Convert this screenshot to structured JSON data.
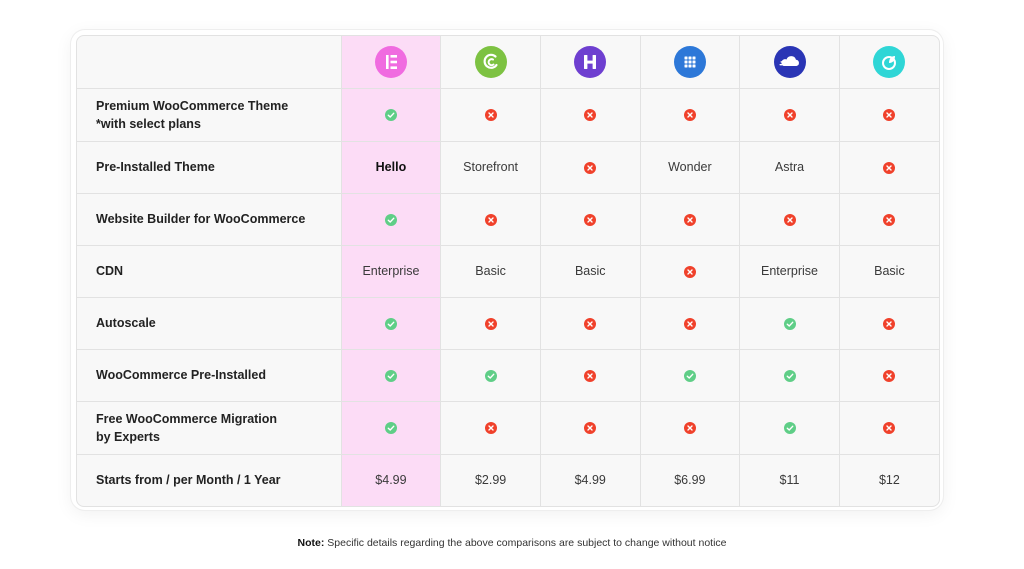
{
  "colors": {
    "highlight": "#fcdcf6",
    "check": "#5fce87",
    "cross": "#f0412b"
  },
  "providers": [
    {
      "icon": "elementor-icon",
      "color": "#f06be0"
    },
    {
      "icon": "green-swirl-icon",
      "color": "#7dc242"
    },
    {
      "icon": "letter-h-icon",
      "color": "#6e3fd0"
    },
    {
      "icon": "grid-icon",
      "color": "#2d78d8"
    },
    {
      "icon": "cloud-icon",
      "color": "#2a35b5"
    },
    {
      "icon": "leaf-circle-icon",
      "color": "#2fd6d6"
    }
  ],
  "rows": [
    {
      "label_line1": "Premium WooCommerce Theme",
      "label_line2": "*with select plans",
      "cells": [
        {
          "type": "check"
        },
        {
          "type": "cross"
        },
        {
          "type": "cross"
        },
        {
          "type": "cross"
        },
        {
          "type": "cross"
        },
        {
          "type": "cross"
        }
      ]
    },
    {
      "label_line1": "Pre-Installed Theme",
      "label_line2": "",
      "cells": [
        {
          "type": "text",
          "text": "Hello",
          "bold": true
        },
        {
          "type": "text",
          "text": "Storefront"
        },
        {
          "type": "cross"
        },
        {
          "type": "text",
          "text": "Wonder"
        },
        {
          "type": "text",
          "text": "Astra"
        },
        {
          "type": "cross"
        }
      ]
    },
    {
      "label_line1": "Website Builder for WooCommerce",
      "label_line2": "",
      "cells": [
        {
          "type": "check"
        },
        {
          "type": "cross"
        },
        {
          "type": "cross"
        },
        {
          "type": "cross"
        },
        {
          "type": "cross"
        },
        {
          "type": "cross"
        }
      ]
    },
    {
      "label_line1": "CDN",
      "label_line2": "",
      "cells": [
        {
          "type": "text",
          "text": "Enterprise"
        },
        {
          "type": "text",
          "text": "Basic"
        },
        {
          "type": "text",
          "text": "Basic"
        },
        {
          "type": "cross"
        },
        {
          "type": "text",
          "text": "Enterprise"
        },
        {
          "type": "text",
          "text": "Basic"
        }
      ]
    },
    {
      "label_line1": "Autoscale",
      "label_line2": "",
      "cells": [
        {
          "type": "check"
        },
        {
          "type": "cross"
        },
        {
          "type": "cross"
        },
        {
          "type": "cross"
        },
        {
          "type": "check"
        },
        {
          "type": "cross"
        }
      ]
    },
    {
      "label_line1": "WooCommerce Pre-Installed",
      "label_line2": "",
      "cells": [
        {
          "type": "check"
        },
        {
          "type": "check"
        },
        {
          "type": "cross"
        },
        {
          "type": "check"
        },
        {
          "type": "check"
        },
        {
          "type": "cross"
        }
      ]
    },
    {
      "label_line1": "Free WooCommerce Migration",
      "label_line2": "by Experts",
      "cells": [
        {
          "type": "check"
        },
        {
          "type": "cross"
        },
        {
          "type": "cross"
        },
        {
          "type": "cross"
        },
        {
          "type": "check"
        },
        {
          "type": "cross"
        }
      ]
    },
    {
      "label_line1": "Starts from / per Month / 1 Year",
      "label_line2": "",
      "cells": [
        {
          "type": "text",
          "text": "$4.99"
        },
        {
          "type": "text",
          "text": "$2.99"
        },
        {
          "type": "text",
          "text": "$4.99"
        },
        {
          "type": "text",
          "text": "$6.99"
        },
        {
          "type": "text",
          "text": "$11"
        },
        {
          "type": "text",
          "text": "$12"
        }
      ]
    }
  ],
  "note": {
    "label": "Note:",
    "text": " Specific details regarding the above comparisons are subject to change without notice"
  }
}
